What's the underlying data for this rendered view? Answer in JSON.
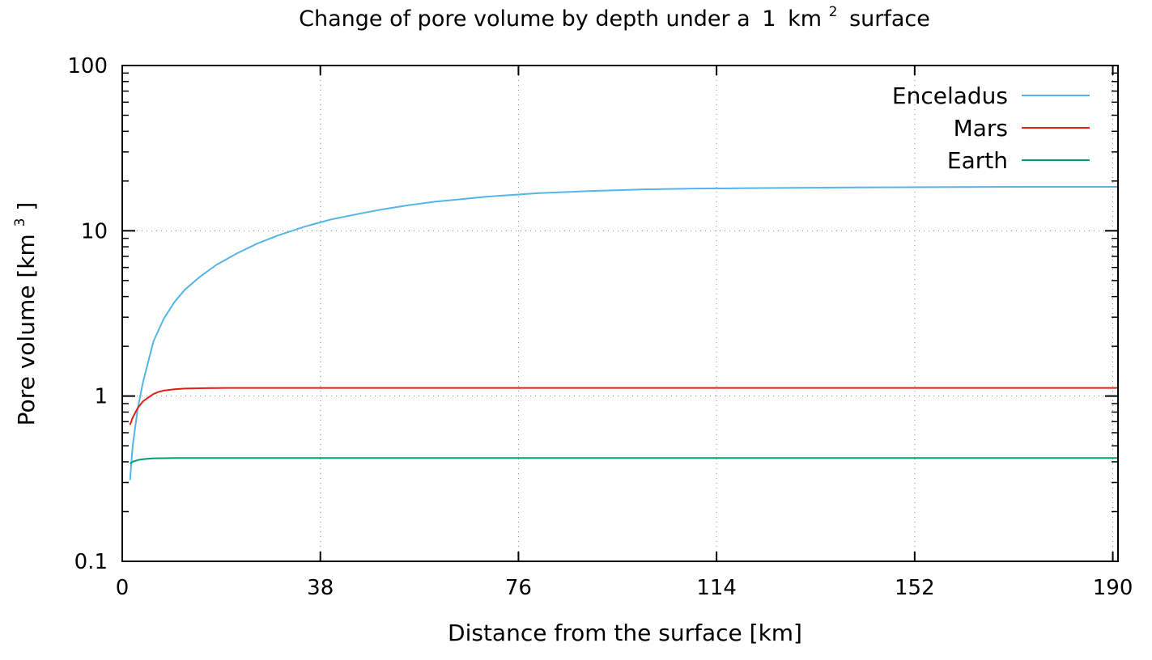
{
  "chart_data": {
    "type": "line",
    "title": {
      "prefix": "Change of pore volume by depth under a",
      "unit_number": "1",
      "unit_base": "km",
      "unit_exponent": "2",
      "suffix": "surface"
    },
    "xlabel": "Distance from the surface [km]",
    "ylabel": {
      "base": "Pore volume [km",
      "exponent": "3",
      "close": "]"
    },
    "xlim": [
      0,
      191
    ],
    "ylim": [
      0.1,
      100
    ],
    "yscale": "log",
    "grid": true,
    "legend_position": "top-right",
    "x_ticks": [
      0,
      38,
      76,
      114,
      152,
      190
    ],
    "x_tick_labels": [
      "0",
      "38",
      "76",
      "114",
      "152",
      "190"
    ],
    "y_ticks": [
      0.1,
      1,
      10,
      100
    ],
    "y_tick_labels": [
      "0.1",
      "1",
      "10",
      "100"
    ],
    "series": [
      {
        "name": "Enceladus",
        "color": "#56b4e9",
        "x": [
          1.5,
          2,
          3,
          4,
          6,
          8,
          10,
          12,
          15,
          18,
          22,
          26,
          30,
          35,
          40,
          45,
          50,
          55,
          60,
          70,
          80,
          90,
          100,
          110,
          120,
          140,
          160,
          180,
          191
        ],
        "y": [
          0.31,
          0.5,
          0.85,
          1.22,
          2.15,
          2.95,
          3.7,
          4.4,
          5.3,
          6.2,
          7.3,
          8.4,
          9.4,
          10.6,
          11.7,
          12.6,
          13.5,
          14.3,
          15.0,
          16.1,
          16.9,
          17.4,
          17.8,
          18.0,
          18.1,
          18.3,
          18.4,
          18.45,
          18.45
        ]
      },
      {
        "name": "Mars",
        "color": "#e51e10",
        "x": [
          1.5,
          2,
          3,
          4,
          5,
          6,
          7,
          8,
          10,
          12,
          15,
          20,
          30,
          50,
          100,
          191
        ],
        "y": [
          0.67,
          0.74,
          0.85,
          0.93,
          0.98,
          1.03,
          1.06,
          1.08,
          1.1,
          1.11,
          1.115,
          1.12,
          1.12,
          1.12,
          1.12,
          1.12
        ]
      },
      {
        "name": "Earth",
        "color": "#009e73",
        "x": [
          1.5,
          2,
          3,
          4,
          5,
          6,
          8,
          10,
          15,
          30,
          100,
          191
        ],
        "y": [
          0.39,
          0.4,
          0.41,
          0.415,
          0.418,
          0.42,
          0.421,
          0.422,
          0.422,
          0.422,
          0.422,
          0.422
        ]
      }
    ]
  }
}
